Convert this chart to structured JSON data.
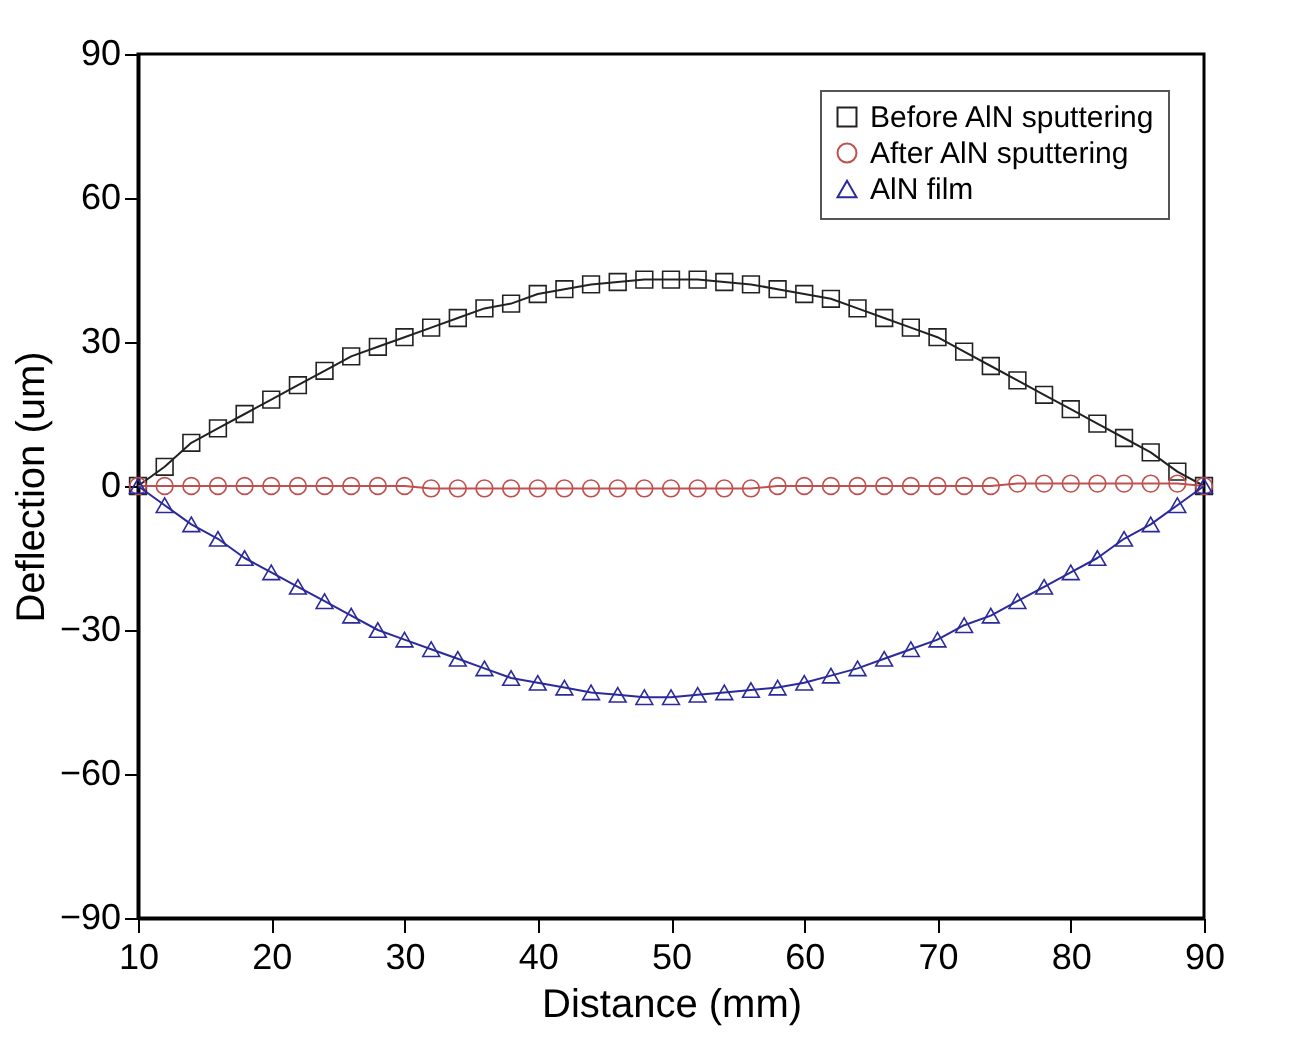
{
  "chart_data": {
    "type": "line",
    "xlabel": "Distance (mm)",
    "ylabel": "Deflection (um)",
    "x": [
      10,
      12,
      14,
      16,
      18,
      20,
      22,
      24,
      26,
      28,
      30,
      32,
      34,
      36,
      38,
      40,
      42,
      44,
      46,
      48,
      50,
      52,
      54,
      56,
      58,
      60,
      62,
      64,
      66,
      68,
      70,
      72,
      74,
      76,
      78,
      80,
      82,
      84,
      86,
      88,
      90
    ],
    "series": [
      {
        "name": "Before AlN sputtering",
        "color": "#222222",
        "marker": "square",
        "values": [
          0,
          4,
          9,
          12,
          15,
          18,
          21,
          24,
          27,
          29,
          31,
          33,
          35,
          37,
          38,
          40,
          41,
          42,
          42.5,
          43,
          43,
          43,
          42.5,
          42,
          41,
          40,
          39,
          37,
          35,
          33,
          31,
          28,
          25,
          22,
          19,
          16,
          13,
          10,
          7,
          3,
          0
        ]
      },
      {
        "name": "After AlN sputtering",
        "color": "#c0504d",
        "marker": "circle",
        "values": [
          0,
          0,
          0,
          0,
          0,
          0,
          0,
          0,
          0,
          0,
          0,
          -0.5,
          -0.5,
          -0.5,
          -0.5,
          -0.5,
          -0.5,
          -0.5,
          -0.5,
          -0.5,
          -0.5,
          -0.5,
          -0.5,
          -0.5,
          0,
          0,
          0,
          0,
          0,
          0,
          0,
          0,
          0,
          0.5,
          0.5,
          0.5,
          0.5,
          0.5,
          0.5,
          0.5,
          0
        ]
      },
      {
        "name": "AlN film",
        "color": "#2a2a9a",
        "marker": "triangle",
        "values": [
          0,
          -4,
          -8,
          -11,
          -15,
          -18,
          -21,
          -24,
          -27,
          -30,
          -32,
          -34,
          -36,
          -38,
          -40,
          -41,
          -42,
          -43,
          -43.5,
          -44,
          -44,
          -43.5,
          -43,
          -42.5,
          -42,
          -41,
          -39.5,
          -38,
          -36,
          -34,
          -32,
          -29,
          -27,
          -24,
          -21,
          -18,
          -15,
          -11,
          -8,
          -4,
          0
        ]
      }
    ],
    "xlim": [
      10,
      90
    ],
    "xticks": [
      10,
      20,
      30,
      40,
      50,
      60,
      70,
      80,
      90
    ],
    "ylim": [
      -90,
      90
    ],
    "yticks": [
      -90,
      -60,
      -30,
      0,
      30,
      60,
      90
    ],
    "grid": false,
    "legend": "top right",
    "line_style": "solid"
  }
}
